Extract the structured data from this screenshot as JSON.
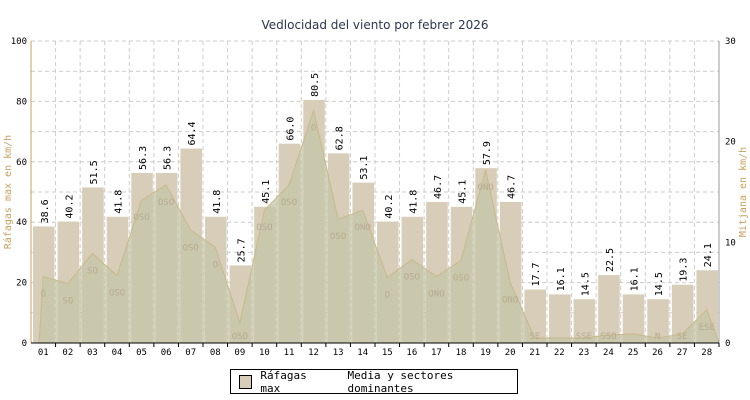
{
  "chart_data": {
    "type": "bar",
    "title": "Vedlocidad del viento por febrer 2026",
    "ylabel": "Ráfagas max en km/h",
    "y2label": "Mitjana en km/h",
    "ylim": [
      0,
      100
    ],
    "y2lim": [
      0,
      30
    ],
    "yticks": [
      "0",
      "20",
      "40",
      "60",
      "80",
      "100"
    ],
    "y2ticks": [
      "0",
      "10",
      "20",
      "30"
    ],
    "categories": [
      "01",
      "02",
      "03",
      "04",
      "05",
      "06",
      "07",
      "08",
      "09",
      "10",
      "11",
      "12",
      "13",
      "14",
      "15",
      "16",
      "17",
      "18",
      "19",
      "20",
      "21",
      "22",
      "23",
      "24",
      "25",
      "26",
      "27",
      "28"
    ],
    "series": [
      {
        "name": "Ráfagas max",
        "type": "bar",
        "axis": "left",
        "color": "#d8cdb8",
        "values": [
          38.6,
          40.2,
          51.5,
          41.8,
          56.3,
          56.3,
          64.4,
          41.8,
          25.7,
          45.1,
          66.0,
          80.5,
          62.8,
          53.1,
          40.2,
          41.8,
          46.7,
          45.1,
          57.9,
          46.7,
          17.7,
          16.1,
          14.5,
          22.5,
          16.1,
          14.5,
          19.3,
          24.1
        ]
      },
      {
        "name": "Media y sectores dominantes",
        "type": "area",
        "axis": "right",
        "color": "#c5c6a8",
        "values": [
          6.6,
          5.9,
          8.9,
          6.7,
          14.2,
          15.7,
          11.2,
          9.5,
          2.0,
          13.2,
          15.7,
          23.1,
          12.3,
          13.2,
          6.5,
          8.3,
          6.6,
          8.2,
          17.2,
          6.0,
          0.5,
          0.5,
          0.5,
          0.8,
          0.9,
          0.5,
          0.9,
          3.3
        ],
        "sectors": [
          "O",
          "SO",
          "SO",
          "OSO",
          "OSO",
          "OSO",
          "OSO",
          "O",
          "OSO",
          "OSO",
          "OSO",
          "O",
          "OSO",
          "ONO",
          "O",
          "OSO",
          "ONO",
          "OSO",
          "ONO",
          "ONO",
          "SE",
          "",
          "SSE",
          "SSO",
          "",
          "N",
          "SE",
          "ESE"
        ]
      }
    ],
    "legend": {
      "placement": "bottom-center",
      "items": [
        "Ráfagas max",
        "Media y sectores dominantes"
      ]
    }
  }
}
